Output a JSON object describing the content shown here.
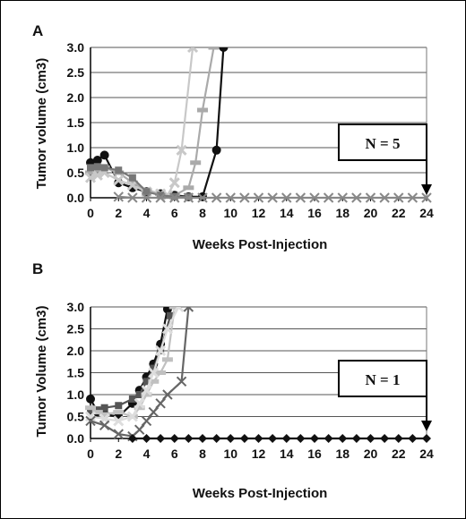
{
  "chart_data": [
    {
      "panel": "A",
      "type": "line",
      "xlabel": "Weeks Post-Injection",
      "ylabel": "Tumor volume (cm3)",
      "xlim": [
        0,
        24
      ],
      "ylim": [
        0,
        3
      ],
      "xticks": [
        "0",
        "2",
        "4",
        "6",
        "8",
        "10",
        "12",
        "14",
        "16",
        "18",
        "20",
        "22",
        "24"
      ],
      "yticks": [
        "0.0",
        "0.5",
        "1.0",
        "1.5",
        "2.0",
        "2.5",
        "3.0"
      ],
      "grid": "horizontal",
      "annotation": "N = 5",
      "series": [
        {
          "marker": "circle",
          "color": "#111111",
          "x": [
            0,
            0.5,
            1,
            2,
            3,
            4,
            5,
            6,
            7,
            8,
            9,
            9.5
          ],
          "y": [
            0.7,
            0.75,
            0.85,
            0.3,
            0.2,
            0.12,
            0.08,
            0.05,
            0.02,
            0.02,
            0.95,
            3.0
          ]
        },
        {
          "marker": "dash",
          "color": "#aaaaaa",
          "x": [
            0,
            0.5,
            1,
            2,
            3,
            4,
            5,
            6,
            7,
            7.5,
            8,
            8.8
          ],
          "y": [
            0.5,
            0.55,
            0.6,
            0.5,
            0.3,
            0.15,
            0.08,
            0.05,
            0.2,
            0.7,
            1.75,
            3.0
          ]
        },
        {
          "marker": "cross",
          "color": "#c8c8c8",
          "x": [
            0,
            0.5,
            1,
            2,
            3,
            4,
            5,
            5.5,
            6,
            6.5,
            7.3
          ],
          "y": [
            0.4,
            0.45,
            0.5,
            0.35,
            0.25,
            0.12,
            0.08,
            0.05,
            0.3,
            0.95,
            3.0
          ]
        },
        {
          "marker": "square",
          "color": "#777777",
          "x": [
            0,
            0.5,
            1,
            2,
            3,
            4,
            5,
            6,
            7
          ],
          "y": [
            0.6,
            0.62,
            0.6,
            0.55,
            0.4,
            0.12,
            0.05,
            0.02,
            0.02
          ]
        },
        {
          "marker": "x",
          "color": "#888888",
          "x": [
            2,
            3,
            4,
            5,
            6,
            7,
            8,
            9,
            10,
            11,
            12,
            13,
            14,
            15,
            16,
            17,
            18,
            19,
            20,
            21,
            22,
            23,
            24
          ],
          "y": [
            0.02,
            0.0,
            0.0,
            0.0,
            0.0,
            0.0,
            0.0,
            0.0,
            0.0,
            0.0,
            0.0,
            0.0,
            0.0,
            0.0,
            0.0,
            0.0,
            0.0,
            0.0,
            0.0,
            0.0,
            0.0,
            0.0,
            0.0
          ]
        }
      ]
    },
    {
      "panel": "B",
      "type": "line",
      "xlabel": "Weeks Post-Injection",
      "ylabel": "Tumor Volume (cm3)",
      "xlim": [
        0,
        24
      ],
      "ylim": [
        0,
        3
      ],
      "xticks": [
        "0",
        "2",
        "4",
        "6",
        "8",
        "10",
        "12",
        "14",
        "16",
        "18",
        "20",
        "22",
        "24"
      ],
      "yticks": [
        "0.0",
        "0.5",
        "1.0",
        "1.5",
        "2.0",
        "2.5",
        "3.0"
      ],
      "grid": "horizontal",
      "annotation": "N = 1",
      "series": [
        {
          "marker": "circle",
          "color": "#111111",
          "x": [
            0,
            0.5,
            1,
            2,
            3,
            3.5,
            4,
            4.5,
            5,
            5.5
          ],
          "y": [
            0.9,
            0.6,
            0.55,
            0.5,
            0.8,
            1.1,
            1.4,
            1.7,
            2.15,
            2.95
          ]
        },
        {
          "marker": "square",
          "color": "#555555",
          "x": [
            0,
            0.5,
            1,
            2,
            3,
            3.5,
            4,
            4.5,
            5,
            5.7
          ],
          "y": [
            0.65,
            0.65,
            0.7,
            0.75,
            0.9,
            1.0,
            1.3,
            1.6,
            2.0,
            2.8
          ]
        },
        {
          "marker": "dash",
          "color": "#c0c0c0",
          "x": [
            0,
            0.5,
            1,
            2,
            3,
            3.5,
            4,
            4.5,
            5,
            5.5,
            6
          ],
          "y": [
            0.7,
            0.6,
            0.55,
            0.6,
            0.5,
            0.7,
            1.0,
            1.3,
            1.5,
            1.8,
            3.0
          ]
        },
        {
          "marker": "cross",
          "color": "#dddddd",
          "x": [
            0,
            1,
            2,
            3,
            3.5,
            4,
            4.5,
            5,
            5.5,
            6.3
          ],
          "y": [
            0.5,
            0.45,
            0.4,
            0.5,
            0.8,
            1.1,
            1.5,
            2.0,
            2.5,
            3.0
          ]
        },
        {
          "marker": "x",
          "color": "#666666",
          "x": [
            0,
            1,
            2,
            3,
            3.5,
            4,
            4.5,
            5,
            5.5,
            6.5,
            7
          ],
          "y": [
            0.4,
            0.3,
            0.1,
            0.05,
            0.2,
            0.4,
            0.6,
            0.8,
            1.0,
            1.3,
            3.0
          ]
        },
        {
          "marker": "diamond",
          "color": "#111111",
          "x": [
            3,
            4,
            5,
            6,
            7,
            8,
            9,
            10,
            11,
            12,
            13,
            14,
            15,
            16,
            17,
            18,
            19,
            20,
            21,
            22,
            23,
            24
          ],
          "y": [
            0.0,
            0.0,
            0.0,
            0.0,
            0.0,
            0.0,
            0.0,
            0.0,
            0.0,
            0.0,
            0.0,
            0.0,
            0.0,
            0.0,
            0.0,
            0.0,
            0.0,
            0.0,
            0.0,
            0.0,
            0.0,
            0.0
          ]
        }
      ]
    }
  ]
}
